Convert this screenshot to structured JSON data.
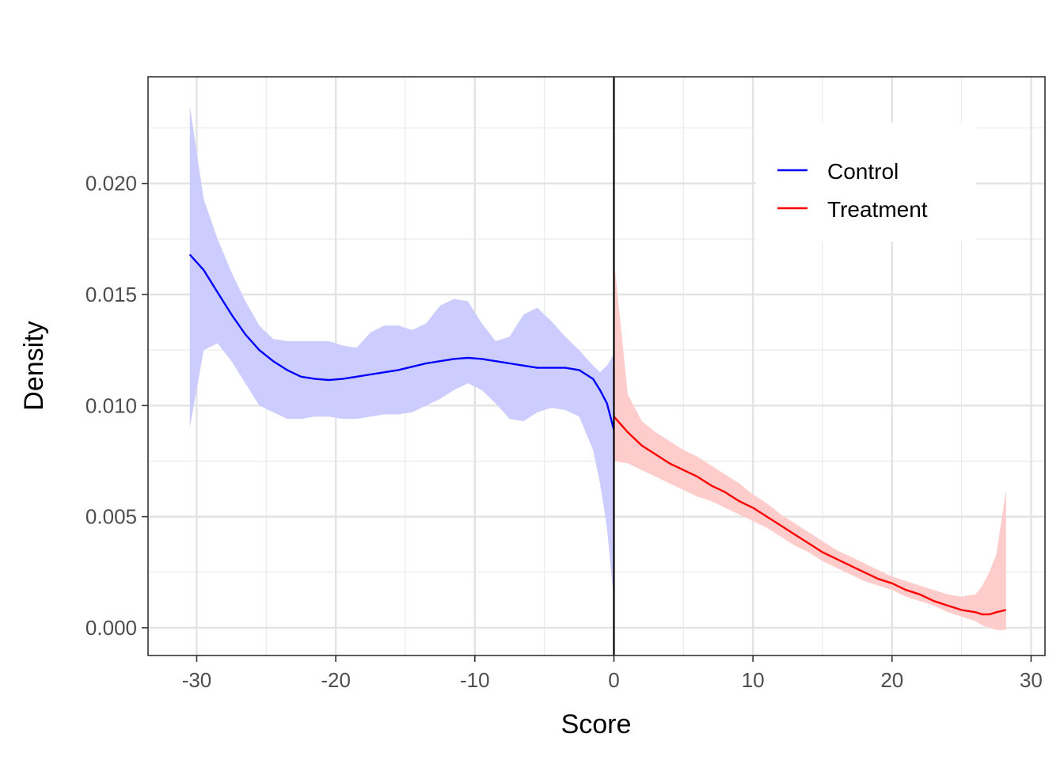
{
  "chart_data": {
    "type": "line",
    "title": "",
    "xlabel": "Score",
    "ylabel": "Density",
    "xlim": [
      -33.5,
      31.0
    ],
    "ylim": [
      -0.00125,
      0.0248
    ],
    "x_ticks": [
      -30,
      -20,
      -10,
      0,
      10,
      20,
      30
    ],
    "x_tick_labels": [
      "-30",
      "-20",
      "-10",
      "0",
      "10",
      "20",
      "30"
    ],
    "y_ticks": [
      0.0,
      0.005,
      0.01,
      0.015,
      0.02
    ],
    "y_tick_labels": [
      "0.000",
      "0.005",
      "0.010",
      "0.015",
      "0.020"
    ],
    "grid": true,
    "cutoff_line_x": 0,
    "legend": {
      "position": "top-right",
      "entries": [
        {
          "label": "Control",
          "color": "#0000ff"
        },
        {
          "label": "Treatment",
          "color": "#ff0000"
        }
      ]
    },
    "series": [
      {
        "name": "Control",
        "color": "#0000ff",
        "band_color": "#ccccff",
        "x": [
          -30.5,
          -29.5,
          -28.5,
          -27.5,
          -26.5,
          -25.5,
          -24.5,
          -23.5,
          -22.5,
          -21.5,
          -20.5,
          -19.5,
          -18.5,
          -17.5,
          -16.5,
          -15.5,
          -14.5,
          -13.5,
          -12.5,
          -11.5,
          -10.5,
          -9.5,
          -8.5,
          -7.5,
          -6.5,
          -5.5,
          -4.5,
          -3.5,
          -2.5,
          -1.5,
          -1.0,
          -0.5,
          0.0
        ],
        "y": [
          0.0168,
          0.0161,
          0.0151,
          0.0141,
          0.0132,
          0.0125,
          0.012,
          0.0116,
          0.0113,
          0.0112,
          0.01115,
          0.0112,
          0.0113,
          0.0114,
          0.0115,
          0.0116,
          0.01175,
          0.0119,
          0.012,
          0.0121,
          0.01215,
          0.0121,
          0.012,
          0.0119,
          0.0118,
          0.0117,
          0.0117,
          0.0117,
          0.0116,
          0.0112,
          0.0107,
          0.0101,
          0.0089
        ],
        "lower": [
          0.009,
          0.0125,
          0.0128,
          0.012,
          0.011,
          0.01,
          0.0097,
          0.0094,
          0.0094,
          0.0095,
          0.0095,
          0.0094,
          0.0094,
          0.0095,
          0.0096,
          0.0096,
          0.0097,
          0.01,
          0.0103,
          0.0107,
          0.011,
          0.0107,
          0.0101,
          0.0094,
          0.0093,
          0.0097,
          0.0099,
          0.0098,
          0.0095,
          0.008,
          0.0065,
          0.0045,
          0.0012
        ],
        "upper": [
          0.0235,
          0.0193,
          0.0175,
          0.016,
          0.0147,
          0.0136,
          0.013,
          0.0129,
          0.0129,
          0.0129,
          0.0129,
          0.0127,
          0.0126,
          0.0133,
          0.0136,
          0.0136,
          0.0134,
          0.0137,
          0.0145,
          0.0148,
          0.0147,
          0.0137,
          0.0129,
          0.0131,
          0.0141,
          0.0144,
          0.0138,
          0.0131,
          0.0125,
          0.0118,
          0.0115,
          0.0118,
          0.0123
        ]
      },
      {
        "name": "Treatment",
        "color": "#ff0000",
        "band_color": "#ffcccc",
        "x": [
          0.0,
          1.0,
          2.0,
          3.0,
          4.0,
          5.0,
          6.0,
          7.0,
          8.0,
          9.0,
          10.0,
          11.0,
          12.0,
          13.0,
          14.0,
          15.0,
          16.0,
          17.0,
          18.0,
          19.0,
          20.0,
          21.0,
          22.0,
          23.0,
          24.0,
          25.0,
          26.0,
          26.5,
          27.0,
          27.5,
          28.2
        ],
        "y": [
          0.0095,
          0.0088,
          0.0082,
          0.0078,
          0.0074,
          0.0071,
          0.0068,
          0.0064,
          0.0061,
          0.0057,
          0.0054,
          0.005,
          0.0046,
          0.0042,
          0.0038,
          0.0034,
          0.0031,
          0.0028,
          0.0025,
          0.0022,
          0.002,
          0.0017,
          0.0015,
          0.0012,
          0.001,
          0.0008,
          0.0007,
          0.0006,
          0.0006,
          0.0007,
          0.0008
        ],
        "lower": [
          0.0075,
          0.0074,
          0.0071,
          0.0068,
          0.0065,
          0.0062,
          0.0059,
          0.0057,
          0.0054,
          0.0051,
          0.0048,
          0.0045,
          0.0041,
          0.0037,
          0.0034,
          0.003,
          0.0027,
          0.0024,
          0.0021,
          0.0019,
          0.0017,
          0.0014,
          0.0012,
          0.001,
          0.0007,
          0.0005,
          0.0003,
          0.0001,
          0.0,
          -0.0001,
          -0.0001
        ],
        "upper": [
          0.0166,
          0.0105,
          0.0093,
          0.0088,
          0.0084,
          0.008,
          0.0077,
          0.0073,
          0.0069,
          0.0065,
          0.006,
          0.0056,
          0.0051,
          0.0047,
          0.0043,
          0.0039,
          0.0035,
          0.0032,
          0.0029,
          0.0026,
          0.0023,
          0.0021,
          0.0019,
          0.0017,
          0.0015,
          0.0014,
          0.0015,
          0.0019,
          0.0025,
          0.0033,
          0.0062
        ]
      }
    ]
  }
}
